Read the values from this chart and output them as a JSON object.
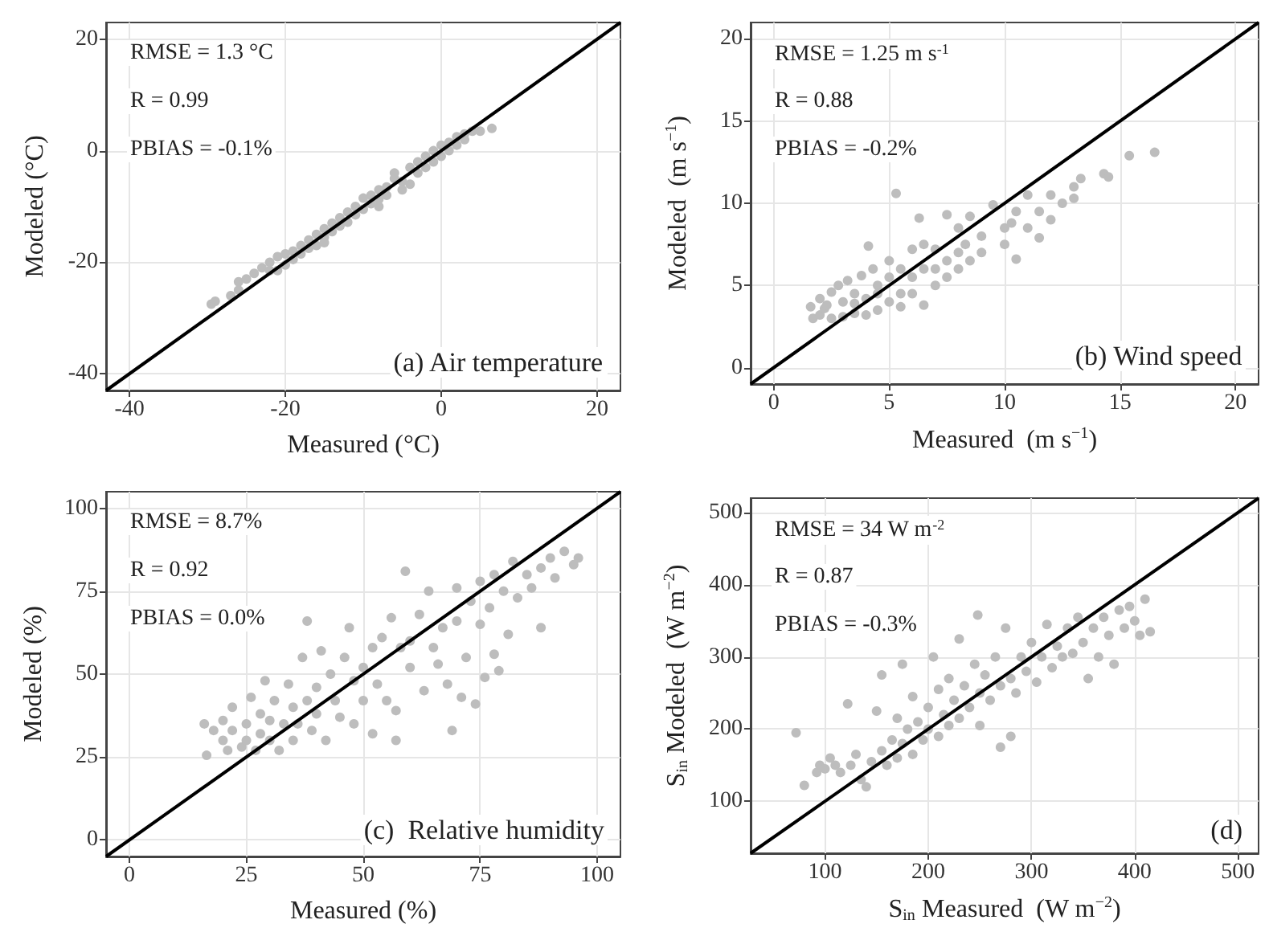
{
  "chart_data": [
    {
      "type": "scatter",
      "xlabel": "Measured (°C)",
      "ylabel": "Modeled (°C)",
      "xlim": [
        -43,
        23
      ],
      "ylim": [
        -43,
        23
      ],
      "xticks": [
        -40,
        -20,
        0,
        20
      ],
      "yticks": [
        -40,
        -20,
        0,
        20
      ],
      "grid": true,
      "marker": "circle",
      "annotations": [
        "RMSE = 1.3 °C",
        "R = 0.99",
        "PBIAS = -0.1%",
        "(a) Air temperature"
      ],
      "series": [
        {
          "type": "scatter",
          "color": "#bdbdbd",
          "x": [
            -29.5,
            -29,
            -27,
            -26,
            -26,
            -25,
            -24,
            -23,
            -22,
            -22,
            -21,
            -20,
            -20,
            -19,
            -19,
            -18,
            -18,
            -17,
            -17,
            -16,
            -16,
            -15,
            -15,
            -14,
            -14,
            -13,
            -13,
            -12,
            -12,
            -11,
            -11,
            -10,
            -10,
            -9,
            -9,
            -8,
            -8,
            -7,
            -7,
            -6,
            -6,
            -5,
            -4,
            -4,
            -3,
            -3,
            -2,
            -2,
            -1,
            -1,
            0,
            0,
            1,
            1,
            2,
            2,
            3,
            3,
            4,
            5,
            6.5,
            -21,
            -15,
            -8,
            -5
          ],
          "values": [
            -27.5,
            -27,
            -26,
            -25,
            -23.5,
            -23,
            -22,
            -21,
            -20,
            -21.5,
            -19,
            -18.5,
            -20.5,
            -18,
            -19.5,
            -17,
            -18.5,
            -16,
            -17.5,
            -15,
            -17,
            -14,
            -15.5,
            -13,
            -14.5,
            -12,
            -13.5,
            -11,
            -12.8,
            -10,
            -11.5,
            -8.5,
            -10.5,
            -8,
            -9.5,
            -7,
            -8.7,
            -6.5,
            -8,
            -5,
            -4,
            -5.5,
            -3,
            -6,
            -2,
            -4,
            -1,
            -3,
            0,
            -2,
            1,
            -1,
            1.5,
            0,
            2.5,
            1,
            3,
            2,
            3.5,
            3.5,
            4,
            -21.5,
            -16.5,
            -10,
            -7
          ]
        },
        {
          "type": "line",
          "color": "#000000",
          "marker": "none",
          "x": [
            -43,
            23
          ],
          "values": [
            -43,
            23
          ]
        }
      ]
    },
    {
      "type": "scatter",
      "xlabel": "Measured  (m s$^{−1}$)",
      "ylabel": "Modeled  (m s$^{−1}$)",
      "xlim": [
        -1,
        21
      ],
      "ylim": [
        -1,
        21
      ],
      "xticks": [
        0,
        5,
        10,
        15,
        20
      ],
      "yticks": [
        0,
        5,
        10,
        15,
        20
      ],
      "grid": true,
      "marker": "circle",
      "annotations": [
        "RMSE = 1.25 m s$^{-1}$",
        "R = 0.88",
        "PBIAS = -0.2%",
        "(b) Wind speed"
      ],
      "series": [
        {
          "type": "scatter",
          "color": "#bdbdbd",
          "x": [
            1.6,
            1.7,
            2,
            2,
            2.2,
            2.5,
            2.5,
            2.8,
            3,
            3,
            3.2,
            3.5,
            3.5,
            3.8,
            4,
            4,
            4.1,
            4.3,
            4.5,
            4.5,
            5,
            5,
            5,
            5.3,
            5.5,
            5.5,
            5.5,
            6,
            6,
            6,
            6.3,
            6.5,
            6.5,
            6.5,
            7,
            7,
            7,
            7.5,
            7.5,
            7.5,
            8,
            8,
            8,
            8.3,
            8.5,
            8.5,
            9,
            9,
            9.5,
            10,
            10,
            10.3,
            10.5,
            10.5,
            11,
            11,
            11.5,
            11.5,
            12,
            12,
            12.5,
            13,
            13,
            13.3,
            14.3,
            14.5,
            15.4,
            16.5,
            2.3,
            3.5,
            4.5
          ],
          "values": [
            3.7,
            3.0,
            4.2,
            3.2,
            3.6,
            4.6,
            3.0,
            5.0,
            4.0,
            3.1,
            5.3,
            4.5,
            3.3,
            5.6,
            4.2,
            3.2,
            7.4,
            6,
            5,
            3.5,
            5.5,
            4,
            6.5,
            10.6,
            4.5,
            6,
            3.7,
            5.5,
            7.2,
            4.5,
            9.1,
            6,
            3.8,
            7.5,
            6,
            5,
            7.2,
            6.5,
            9.3,
            5.5,
            7,
            6,
            8.5,
            7.5,
            6.5,
            9.2,
            8,
            7,
            9.9,
            8.5,
            7.5,
            8.8,
            6.6,
            9.5,
            8.5,
            10.5,
            7.9,
            9.5,
            10.5,
            9,
            10,
            11,
            10.3,
            11.5,
            11.8,
            11.6,
            12.9,
            13.1,
            3.8,
            3.9,
            4.5
          ]
        },
        {
          "type": "line",
          "color": "#000000",
          "marker": "none",
          "x": [
            -1,
            21
          ],
          "values": [
            -1,
            21
          ]
        }
      ]
    },
    {
      "type": "scatter",
      "xlabel": "Measured (%)",
      "ylabel": "Modeled (%)",
      "xlim": [
        -5,
        105
      ],
      "ylim": [
        -5,
        105
      ],
      "xticks": [
        0,
        25,
        50,
        75,
        100
      ],
      "yticks": [
        0,
        25,
        50,
        75,
        100
      ],
      "grid": true,
      "marker": "circle",
      "annotations": [
        "RMSE = 8.7%",
        "R = 0.92",
        "PBIAS = 0.0%",
        "(c)  Relative humidity"
      ],
      "series": [
        {
          "type": "scatter",
          "color": "#bdbdbd",
          "x": [
            16,
            16.5,
            18,
            20,
            20,
            21,
            22,
            22,
            24,
            25,
            25,
            26,
            27,
            28,
            28,
            29,
            30,
            30,
            31,
            32,
            33,
            34,
            35,
            35,
            36,
            37,
            38,
            38,
            39,
            40,
            40,
            41,
            42,
            43,
            44,
            45,
            46,
            47,
            48,
            48,
            50,
            50,
            52,
            52,
            53,
            54,
            55,
            56,
            57,
            57,
            58,
            59,
            60,
            60,
            62,
            63,
            64,
            65,
            66,
            67,
            68,
            69,
            70,
            70,
            71,
            72,
            73,
            74,
            75,
            75,
            76,
            77,
            78,
            78,
            79,
            80,
            81,
            82,
            83,
            85,
            86,
            88,
            88,
            90,
            91,
            93,
            95,
            96
          ],
          "values": [
            35,
            25.5,
            33,
            30,
            36,
            27,
            33,
            40,
            28,
            35,
            30,
            43,
            27,
            38,
            32,
            48,
            30,
            36,
            42,
            27,
            35,
            47,
            40,
            30,
            35,
            55,
            66,
            42,
            33,
            46,
            38,
            57,
            30,
            50,
            42,
            37,
            55,
            64,
            48,
            35,
            52,
            42,
            58,
            32,
            47,
            61,
            42,
            67,
            39,
            30,
            58,
            81,
            52,
            60,
            68,
            45,
            75,
            58,
            53,
            64,
            47,
            33,
            76,
            66,
            43,
            55,
            72,
            41,
            78,
            65,
            49,
            70,
            56,
            80,
            51,
            75,
            62,
            84,
            73,
            80,
            76,
            64,
            82,
            85,
            79,
            87,
            83,
            85
          ]
        },
        {
          "type": "line",
          "color": "#000000",
          "marker": "none",
          "x": [
            -5,
            105
          ],
          "values": [
            -5,
            105
          ]
        }
      ]
    },
    {
      "type": "scatter",
      "xlabel": "S$_{in}$ Measured  (W m$^{−2}$)",
      "ylabel": "S$_{in}$ Modeled  (W m$^{−2}$)",
      "xlim": [
        28,
        520
      ],
      "ylim": [
        28,
        520
      ],
      "xticks": [
        100,
        200,
        300,
        400,
        500
      ],
      "yticks": [
        100,
        200,
        300,
        400,
        500
      ],
      "grid": true,
      "marker": "circle",
      "annotations": [
        "RMSE = 34 W m$^{-2}$",
        "R = 0.87",
        "PBIAS = -0.3%",
        "(d)"
      ],
      "series": [
        {
          "type": "scatter",
          "color": "#bdbdbd",
          "x": [
            72,
            80,
            92,
            95,
            100,
            105,
            110,
            115,
            122,
            125,
            130,
            135,
            140,
            145,
            150,
            155,
            155,
            160,
            165,
            170,
            170,
            175,
            175,
            180,
            185,
            185,
            190,
            195,
            200,
            200,
            205,
            210,
            210,
            215,
            220,
            220,
            225,
            230,
            230,
            235,
            240,
            245,
            248,
            250,
            250,
            255,
            260,
            265,
            270,
            270,
            275,
            280,
            280,
            285,
            290,
            295,
            300,
            305,
            310,
            315,
            320,
            325,
            330,
            335,
            340,
            345,
            350,
            355,
            360,
            365,
            370,
            375,
            380,
            385,
            390,
            395,
            400,
            405,
            410,
            415
          ],
          "values": [
            195,
            122,
            140,
            150,
            145,
            160,
            150,
            140,
            235,
            150,
            165,
            130,
            120,
            155,
            225,
            275,
            170,
            150,
            185,
            160,
            215,
            290,
            180,
            200,
            165,
            245,
            210,
            185,
            230,
            200,
            300,
            190,
            255,
            220,
            270,
            205,
            240,
            325,
            215,
            260,
            230,
            290,
            358,
            250,
            205,
            275,
            240,
            300,
            175,
            260,
            340,
            190,
            270,
            250,
            300,
            280,
            320,
            265,
            300,
            345,
            285,
            315,
            300,
            340,
            305,
            355,
            320,
            270,
            340,
            300,
            355,
            330,
            290,
            365,
            340,
            370,
            350,
            330,
            380,
            335
          ]
        },
        {
          "type": "line",
          "color": "#000000",
          "marker": "none",
          "x": [
            28,
            520
          ],
          "values": [
            28,
            520
          ]
        }
      ]
    }
  ]
}
